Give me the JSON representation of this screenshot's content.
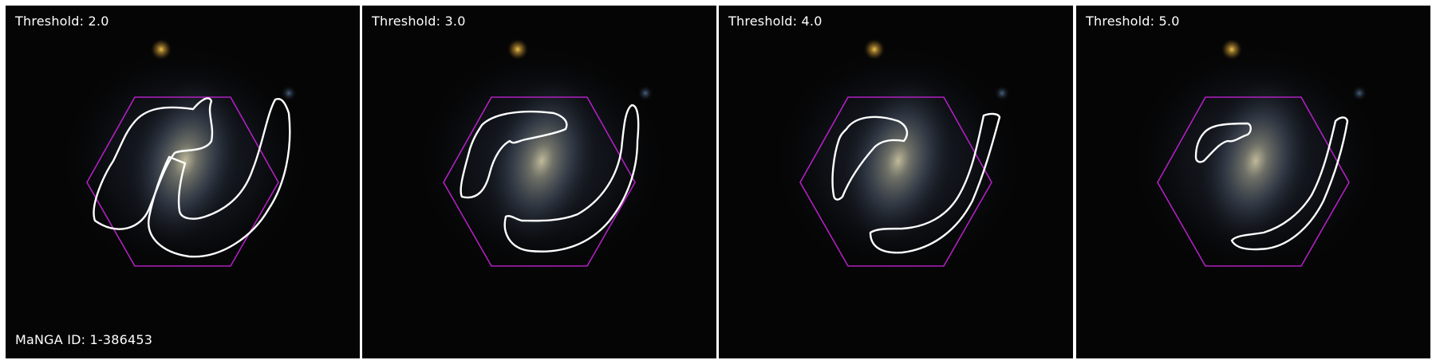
{
  "panels": [
    {
      "label": "Threshold: 2.0"
    },
    {
      "label": "Threshold: 3.0"
    },
    {
      "label": "Threshold: 4.0"
    },
    {
      "label": "Threshold: 5.0"
    }
  ],
  "manga_id_label": "MaNGA ID: 1-386453",
  "colors": {
    "background": "#050505",
    "hexagon": "#b020c0",
    "contour": "#ffffff",
    "separator": "#ffffff"
  },
  "icons": {
    "galaxy": "galaxy-image",
    "hexagon": "ifu-hexagon-outline",
    "contour": "spiral-arm-contour"
  }
}
